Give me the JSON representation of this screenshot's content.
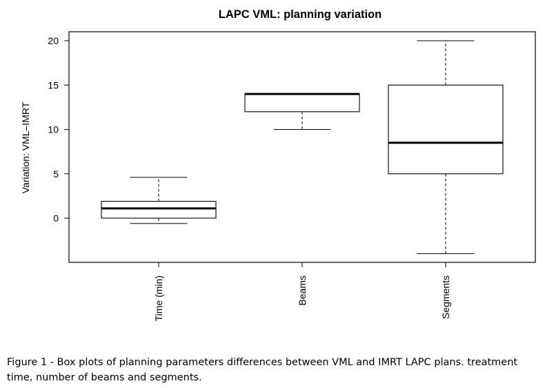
{
  "chart_data": {
    "type": "box",
    "title": "LAPC VML: planning variation",
    "xlabel": "",
    "ylabel": "Variation: VML–IMRT",
    "yticks": [
      0,
      5,
      10,
      15,
      20
    ],
    "ylim": [
      -5,
      21
    ],
    "grid": false,
    "legend": "none",
    "categories": [
      "Time (min)",
      "Beams",
      "Segments"
    ],
    "boxes": [
      {
        "category": "Time (min)",
        "whisker_low": -0.6,
        "q1": 0,
        "median": 1.1,
        "q3": 1.9,
        "whisker_high": 4.6
      },
      {
        "category": "Beams",
        "whisker_low": 10,
        "q1": 12,
        "median": 14,
        "q3": 14,
        "whisker_high": 14
      },
      {
        "category": "Segments",
        "whisker_low": -4,
        "q1": 5,
        "median": 8.5,
        "q3": 15,
        "whisker_high": 20
      }
    ]
  },
  "caption": "Figure 1 - Box plots of planning parameters differences between VML and IMRT LAPC plans. treatment time, number of beams and segments."
}
